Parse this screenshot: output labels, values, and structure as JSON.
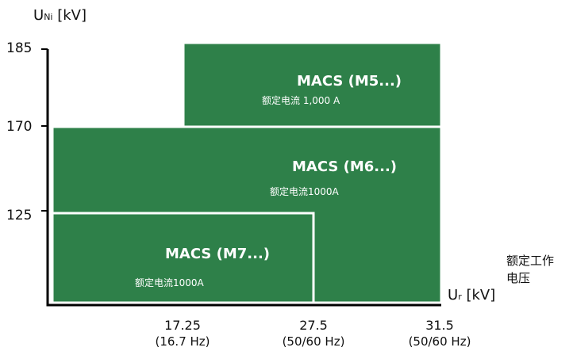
{
  "chart_data": {
    "type": "bar",
    "ylabel": {
      "main": "U",
      "sub": "Ni",
      "unit": "[kV]"
    },
    "xlabel": {
      "main": "U",
      "sub": "r",
      "unit": "[kV]"
    },
    "xlabel_caption": [
      "额定工作",
      "电压"
    ],
    "yticks": [
      "185",
      "170",
      "125"
    ],
    "xticks": [
      {
        "value": "17.25",
        "freq": "(16.7 Hz)"
      },
      {
        "value": "27.5",
        "freq": "(50/60 Hz)"
      },
      {
        "value": "31.5",
        "freq": "(50/60 Hz)"
      }
    ],
    "series": [
      {
        "name": "MACS (M7...)",
        "rating": "额定电流1000A",
        "x_max_kv": 27.5,
        "y_max_kv": 125
      },
      {
        "name": "MACS (M6...)",
        "rating": "额定电流1000A",
        "x_max_kv": 31.5,
        "y_max_kv": 170
      },
      {
        "name": "MACS (M5...)",
        "rating": "额定电流 1,000 A",
        "x_min_kv": 17.25,
        "x_max_kv": 31.5,
        "y_min_kv": 170,
        "y_max_kv": 185
      }
    ],
    "colors": {
      "fill": "#2e8049",
      "axis": "#000000",
      "border": "#ffffff"
    }
  }
}
